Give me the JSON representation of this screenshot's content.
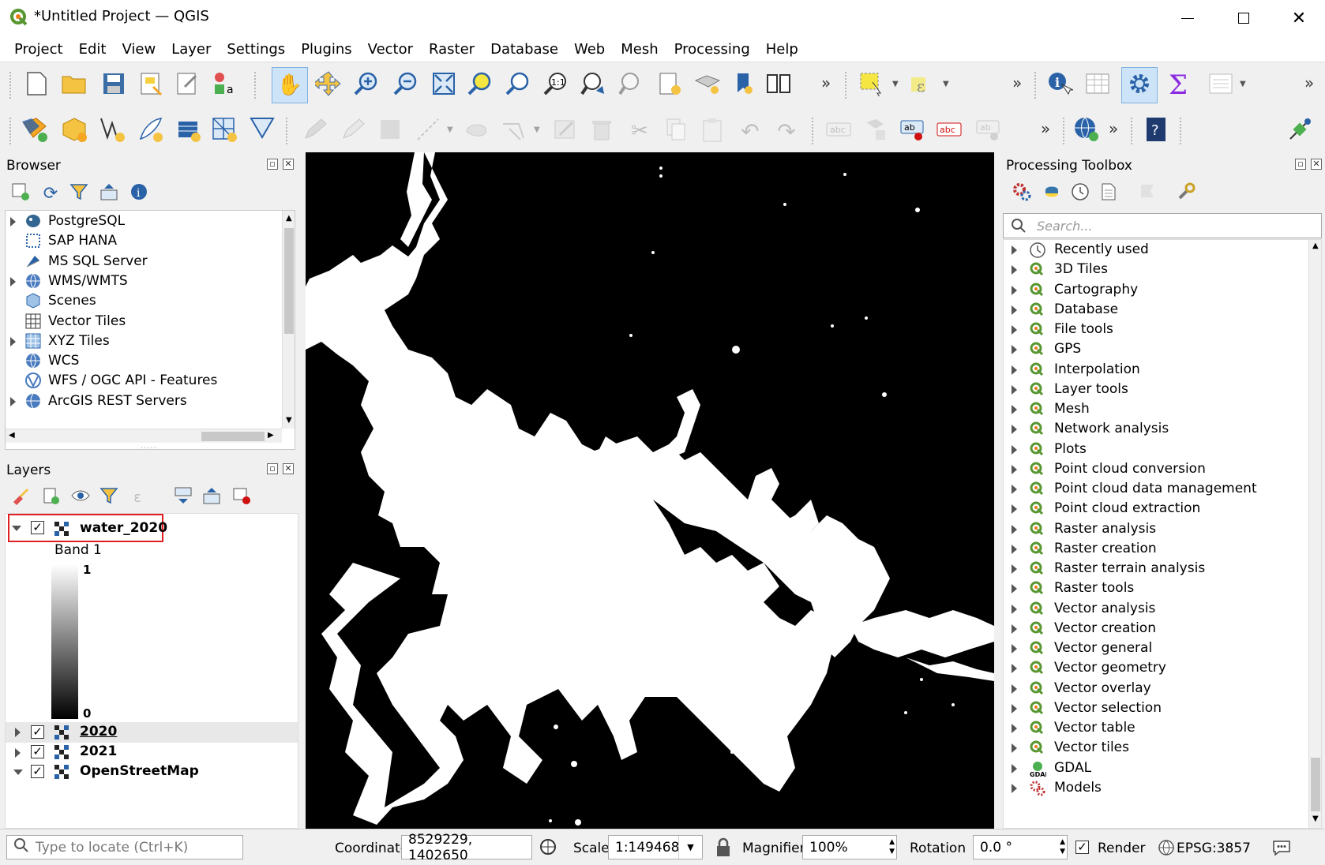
{
  "window": {
    "title": "*Untitled Project — QGIS"
  },
  "menu": [
    "Project",
    "Edit",
    "View",
    "Layer",
    "Settings",
    "Plugins",
    "Vector",
    "Raster",
    "Database",
    "Web",
    "Mesh",
    "Processing",
    "Help"
  ],
  "browser": {
    "title": "Browser",
    "items": [
      {
        "label": "PostgreSQL",
        "icon": "postgresql-icon",
        "expandable": true
      },
      {
        "label": "SAP HANA",
        "icon": "sap-hana-icon",
        "expandable": false
      },
      {
        "label": "MS SQL Server",
        "icon": "mssql-icon",
        "expandable": false
      },
      {
        "label": "WMS/WMTS",
        "icon": "wms-icon",
        "expandable": true
      },
      {
        "label": "Scenes",
        "icon": "scenes-icon",
        "expandable": false
      },
      {
        "label": "Vector Tiles",
        "icon": "vector-tiles-icon",
        "expandable": false
      },
      {
        "label": "XYZ Tiles",
        "icon": "xyz-tiles-icon",
        "expandable": true
      },
      {
        "label": "WCS",
        "icon": "wcs-icon",
        "expandable": false
      },
      {
        "label": "WFS / OGC API - Features",
        "icon": "wfs-icon",
        "expandable": false
      },
      {
        "label": "ArcGIS REST Servers",
        "icon": "arcgis-icon",
        "expandable": true
      }
    ]
  },
  "layers": {
    "title": "Layers",
    "selected": {
      "name": "water_2020",
      "band": "Band 1",
      "max": "1",
      "min": "0"
    },
    "others": [
      {
        "name": "2020",
        "checked": true
      },
      {
        "name": "2021",
        "checked": true
      },
      {
        "name": "OpenStreetMap",
        "checked": true
      }
    ]
  },
  "toolbox": {
    "title": "Processing Toolbox",
    "search_placeholder": "Search...",
    "items": [
      "Recently used",
      "3D Tiles",
      "Cartography",
      "Database",
      "File tools",
      "GPS",
      "Interpolation",
      "Layer tools",
      "Mesh",
      "Network analysis",
      "Plots",
      "Point cloud conversion",
      "Point cloud data management",
      "Point cloud extraction",
      "Raster analysis",
      "Raster creation",
      "Raster terrain analysis",
      "Raster tools",
      "Vector analysis",
      "Vector creation",
      "Vector general",
      "Vector geometry",
      "Vector overlay",
      "Vector selection",
      "Vector table",
      "Vector tiles",
      "GDAL",
      "Models"
    ]
  },
  "status": {
    "locate_placeholder": "Type to locate (Ctrl+K)",
    "coordinate_label": "Coordinate",
    "coordinate_value": "8529229, 1402650",
    "scale_label": "Scale",
    "scale_value": "1:149468",
    "magnifier_label": "Magnifier",
    "magnifier_value": "100%",
    "rotation_label": "Rotation",
    "rotation_value": "0.0 °",
    "render_label": "Render",
    "crs": "EPSG:3857"
  },
  "colors": {
    "qgis_green": "#589632",
    "highlight": "#e02020",
    "map_bg": "#000000",
    "water": "#ffffff"
  }
}
